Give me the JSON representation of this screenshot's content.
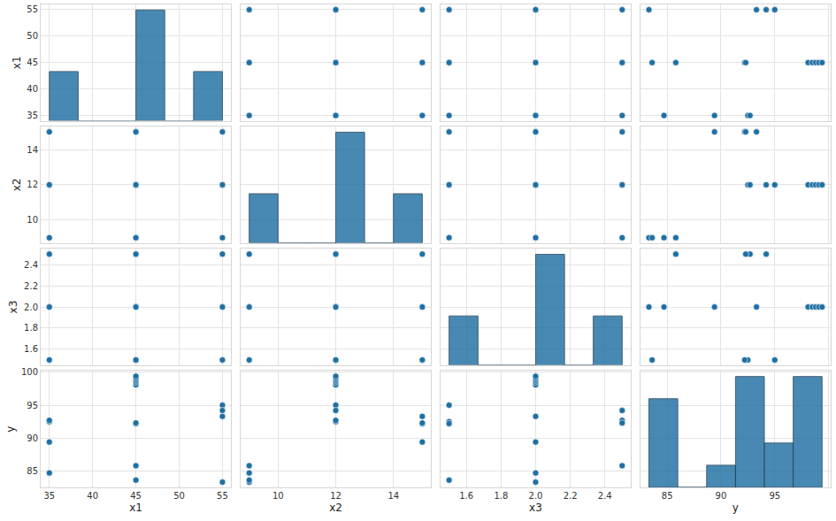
{
  "chart_data": {
    "type": "pairplot",
    "color": "#1f6fa3",
    "marker": "circle",
    "grid": true,
    "variables": [
      {
        "name": "x1",
        "values": [
          35,
          55,
          35,
          55,
          35,
          55,
          35,
          55,
          45,
          45,
          45,
          45,
          45,
          45,
          45,
          45,
          45
        ],
        "lim": [
          34,
          56
        ],
        "ticks": [
          35,
          40,
          45,
          50,
          55
        ],
        "bins": [
          35,
          38.333,
          41.667,
          45,
          48.333,
          51.667,
          55
        ],
        "counts": [
          4,
          0,
          0,
          9,
          0,
          4
        ]
      },
      {
        "name": "x2",
        "values": [
          9,
          9,
          15,
          15,
          12,
          12,
          12,
          12,
          9,
          15,
          9,
          15,
          12,
          12,
          12,
          12,
          12
        ],
        "lim": [
          8.7,
          15.3
        ],
        "ticks": [
          10,
          12,
          14
        ],
        "bins": [
          9,
          10,
          11,
          12,
          13,
          14,
          15
        ],
        "counts": [
          4,
          0,
          0,
          9,
          0,
          4
        ]
      },
      {
        "name": "x3",
        "values": [
          2,
          2,
          2,
          2,
          1.5,
          1.5,
          2.5,
          2.5,
          1.5,
          1.5,
          2.5,
          2.5,
          2,
          2,
          2,
          2,
          2
        ],
        "lim": [
          1.45,
          2.55
        ],
        "ticks": [
          1.6,
          1.8,
          {
            "value": 2,
            "label": "2.0"
          },
          2.2,
          2.4
        ],
        "bins": [
          1.5,
          1.667,
          1.833,
          2.0,
          2.167,
          2.333,
          2.5
        ],
        "counts": [
          4,
          0,
          0,
          9,
          0,
          4
        ]
      },
      {
        "name": "y",
        "values": [
          84.7,
          83.3,
          89.4,
          93.3,
          92.5,
          95.0,
          92.7,
          94.2,
          83.6,
          92.2,
          85.8,
          92.3,
          98.1,
          98.5,
          98.8,
          99.1,
          99.4
        ],
        "lim": [
          82.5,
          100.2
        ],
        "ticks": [
          85,
          90,
          95,
          100
        ],
        "bins": [
          83.3,
          85.983,
          88.667,
          91.35,
          94.033,
          96.717,
          99.4
        ],
        "counts": [
          4,
          0,
          1,
          5,
          2,
          5
        ]
      }
    ]
  }
}
